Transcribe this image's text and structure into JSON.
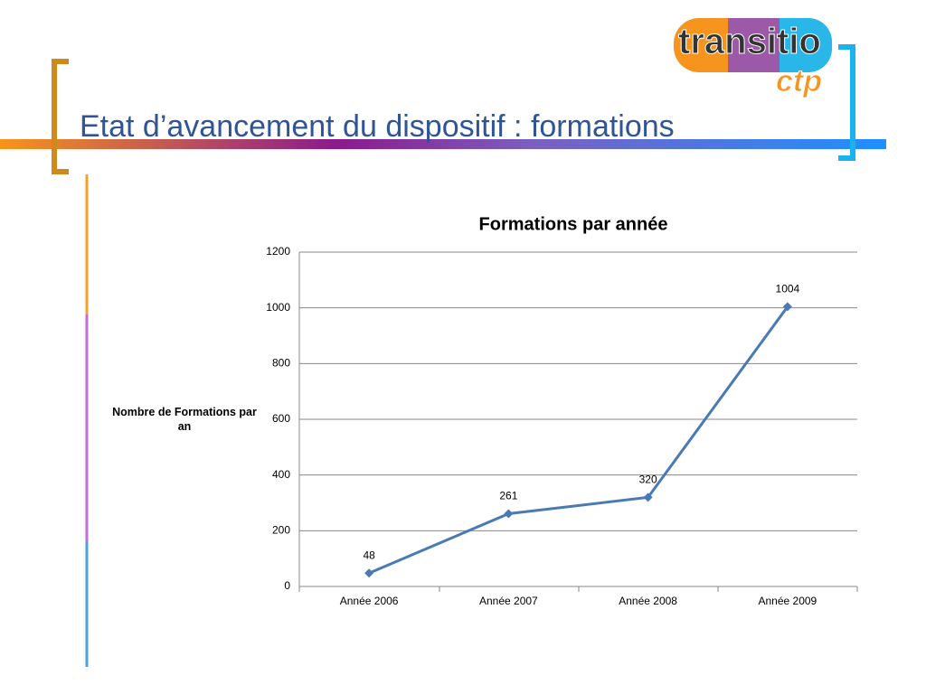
{
  "slide_title": "Etat d’avancement du dispositif : formations",
  "logo": {
    "parts": [
      "tran",
      "si",
      "tio"
    ],
    "sub": "ctp"
  },
  "chart_data": {
    "type": "line",
    "title": "Formations par année",
    "y_label": "Nombre de Formations par an",
    "categories": [
      "Année 2006",
      "Année 2007",
      "Année 2008",
      "Année 2009"
    ],
    "series": [
      {
        "name": "Formations",
        "color": "#4a7ab5",
        "values": [
          48,
          261,
          320,
          1004
        ]
      }
    ],
    "ylim": [
      0,
      1200
    ],
    "yticks": [
      0,
      200,
      400,
      600,
      800,
      1000,
      1200
    ],
    "grid": true
  }
}
